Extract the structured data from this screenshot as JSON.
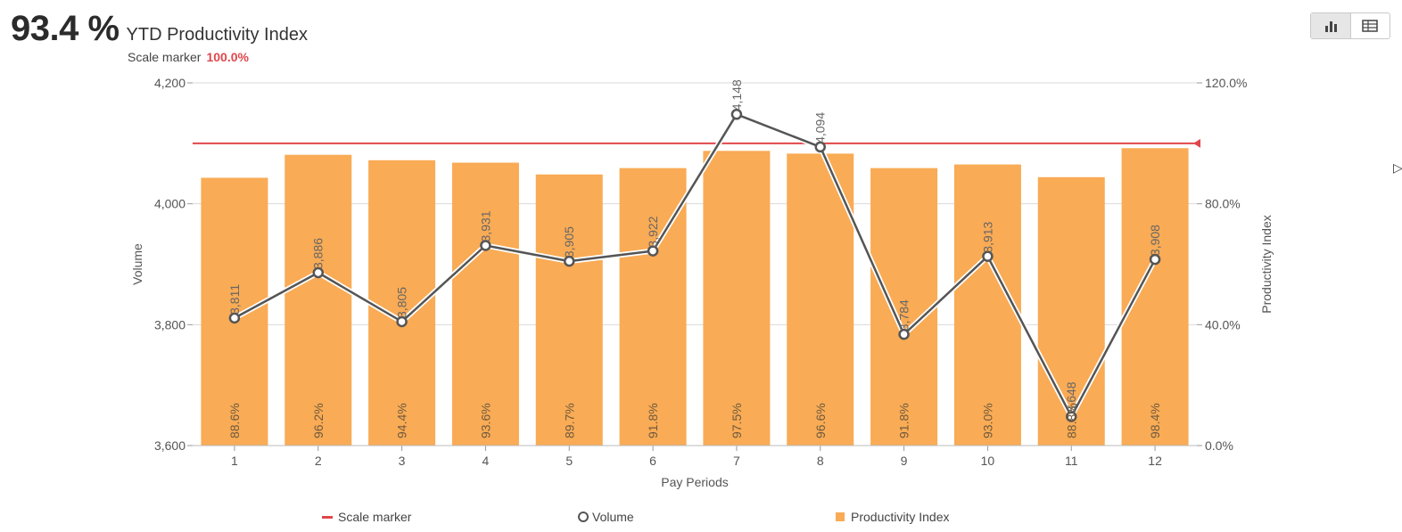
{
  "header": {
    "kpi_value": "93.4 %",
    "kpi_title": "YTD Productivity Index",
    "scale_label": "Scale marker",
    "scale_value": "100.0%"
  },
  "view_toggle": {
    "chart_icon": "bar-chart-icon",
    "table_icon": "table-icon",
    "active": "chart"
  },
  "colors": {
    "bars": "#f9ab55",
    "line": "#555555",
    "marker": "#e0474c",
    "grid": "#d9d9d9"
  },
  "chart_data": {
    "type": "bar",
    "xlabel": "Pay Periods",
    "ylabel": "Volume",
    "y2label": "Productivity Index",
    "categories": [
      "1",
      "2",
      "3",
      "4",
      "5",
      "6",
      "7",
      "8",
      "9",
      "10",
      "11",
      "12"
    ],
    "ylim": [
      3600,
      4200
    ],
    "y_ticks": [
      "3,600",
      "3,800",
      "4,000",
      "4,200"
    ],
    "y_tick_values": [
      3600,
      3800,
      4000,
      4200
    ],
    "y2lim": [
      0,
      120
    ],
    "y2_ticks": [
      "0.0%",
      "40.0%",
      "80.0%",
      "120.0%"
    ],
    "y2_tick_values": [
      0,
      40,
      80,
      120
    ],
    "scale_marker": 100,
    "grid": true,
    "legend_position": "bottom",
    "series": [
      {
        "name": "Productivity Index",
        "type": "bar",
        "axis": "right",
        "values": [
          88.6,
          96.2,
          94.4,
          93.6,
          89.7,
          91.8,
          97.5,
          96.6,
          91.8,
          93.0,
          88.8,
          98.4
        ],
        "labels": [
          "88.6%",
          "96.2%",
          "94.4%",
          "93.6%",
          "89.7%",
          "91.8%",
          "97.5%",
          "96.6%",
          "91.8%",
          "93.0%",
          "88.8%",
          "98.4%"
        ]
      },
      {
        "name": "Volume",
        "type": "line",
        "axis": "left",
        "values": [
          3811,
          3886,
          3805,
          3931,
          3905,
          3922,
          4148,
          4094,
          3784,
          3913,
          3648,
          3908
        ],
        "labels": [
          "3,811",
          "3,886",
          "3,805",
          "3,931",
          "3,905",
          "3,922",
          "4,148",
          "4,094",
          "3,784",
          "3,913",
          "3,648",
          "3,908"
        ]
      }
    ]
  },
  "legend": {
    "scale_marker": "Scale marker",
    "volume": "Volume",
    "productivity": "Productivity Index"
  }
}
